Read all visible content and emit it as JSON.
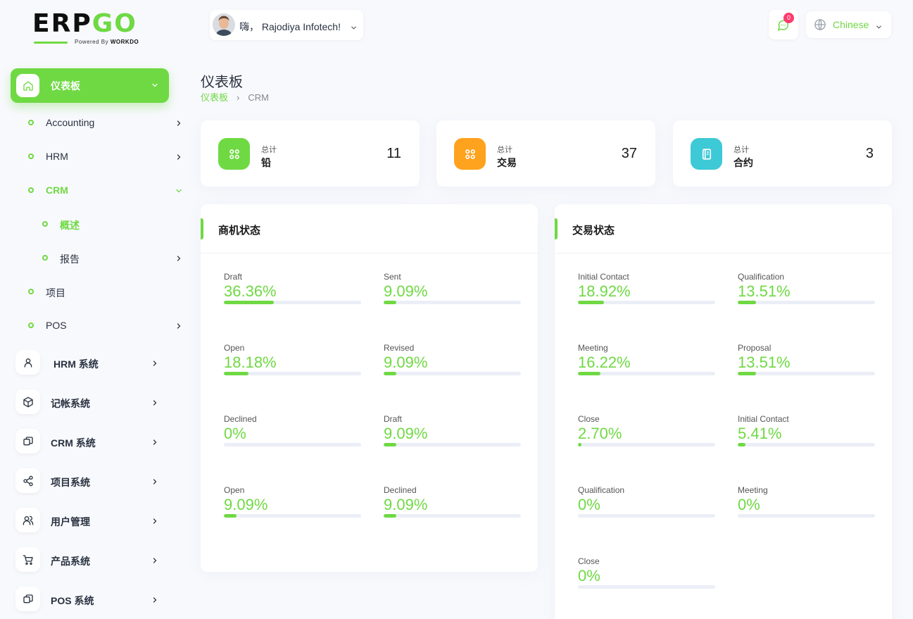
{
  "brand": {
    "logo_left": "ERP",
    "logo_right": "GO",
    "powered_prefix": "Powered By",
    "powered_brand": "WORKDO"
  },
  "colors": {
    "accent": "#6fd943",
    "orange": "#ffa21d",
    "cyan": "#3ec9d6",
    "badge": "#ff3a6e"
  },
  "sidebar": {
    "dashboard": {
      "label": "仪表板",
      "icon": "home-icon"
    },
    "sub_items": [
      {
        "label": "Accounting",
        "has_arrow": true
      },
      {
        "label": "HRM",
        "has_arrow": true
      },
      {
        "label": "CRM",
        "expanded": true
      },
      {
        "label": "概述",
        "level": 2,
        "active": true
      },
      {
        "label": "报告",
        "level": 2,
        "has_arrow": true
      },
      {
        "label": "项目",
        "has_arrow": false
      },
      {
        "label": "POS",
        "has_arrow": true
      }
    ],
    "items": [
      {
        "label": "HRM 系统",
        "icon": "user-icon"
      },
      {
        "label": "记帐系统",
        "icon": "box-icon"
      },
      {
        "label": "CRM 系统",
        "icon": "layers-icon"
      },
      {
        "label": "项目系统",
        "icon": "share-icon"
      },
      {
        "label": "用户管理",
        "icon": "users-icon"
      },
      {
        "label": "产品系统",
        "icon": "cart-icon"
      },
      {
        "label": "POS 系统",
        "icon": "layers-icon"
      }
    ]
  },
  "header": {
    "greeting": "嗨， Rajodiya Infotech!",
    "notification_count": "0",
    "language": "Chinese"
  },
  "page": {
    "title": "仪表板",
    "breadcrumb": [
      "仪表板",
      "CRM"
    ]
  },
  "stats": [
    {
      "small": "总计",
      "label": "铅",
      "value": "11",
      "icon": "grid-icon"
    },
    {
      "small": "总计",
      "label": "交易",
      "value": "37",
      "icon": "grid-icon"
    },
    {
      "small": "总计",
      "label": "合约",
      "value": "3",
      "icon": "notebook-icon"
    }
  ],
  "lead_status": {
    "title": "商机状态",
    "items": [
      {
        "label": "Draft",
        "value": "36.36%",
        "percent": 36.36
      },
      {
        "label": "Sent",
        "value": "9.09%",
        "percent": 9.09
      },
      {
        "label": "Open",
        "value": "18.18%",
        "percent": 18.18
      },
      {
        "label": "Revised",
        "value": "9.09%",
        "percent": 9.09
      },
      {
        "label": "Declined",
        "value": "0%",
        "percent": 0
      },
      {
        "label": "Draft",
        "value": "9.09%",
        "percent": 9.09
      },
      {
        "label": "Open",
        "value": "9.09%",
        "percent": 9.09
      },
      {
        "label": "Declined",
        "value": "9.09%",
        "percent": 9.09
      }
    ]
  },
  "deal_status": {
    "title": "交易状态",
    "items": [
      {
        "label": "Initial Contact",
        "value": "18.92%",
        "percent": 18.92
      },
      {
        "label": "Qualification",
        "value": "13.51%",
        "percent": 13.51
      },
      {
        "label": "Meeting",
        "value": "16.22%",
        "percent": 16.22
      },
      {
        "label": "Proposal",
        "value": "13.51%",
        "percent": 13.51
      },
      {
        "label": "Close",
        "value": "2.70%",
        "percent": 2.7
      },
      {
        "label": "Initial Contact",
        "value": "5.41%",
        "percent": 5.41
      },
      {
        "label": "Qualification",
        "value": "0%",
        "percent": 0
      },
      {
        "label": "Meeting",
        "value": "0%",
        "percent": 0
      },
      {
        "label": "Close",
        "value": "0%",
        "percent": 0
      }
    ]
  }
}
